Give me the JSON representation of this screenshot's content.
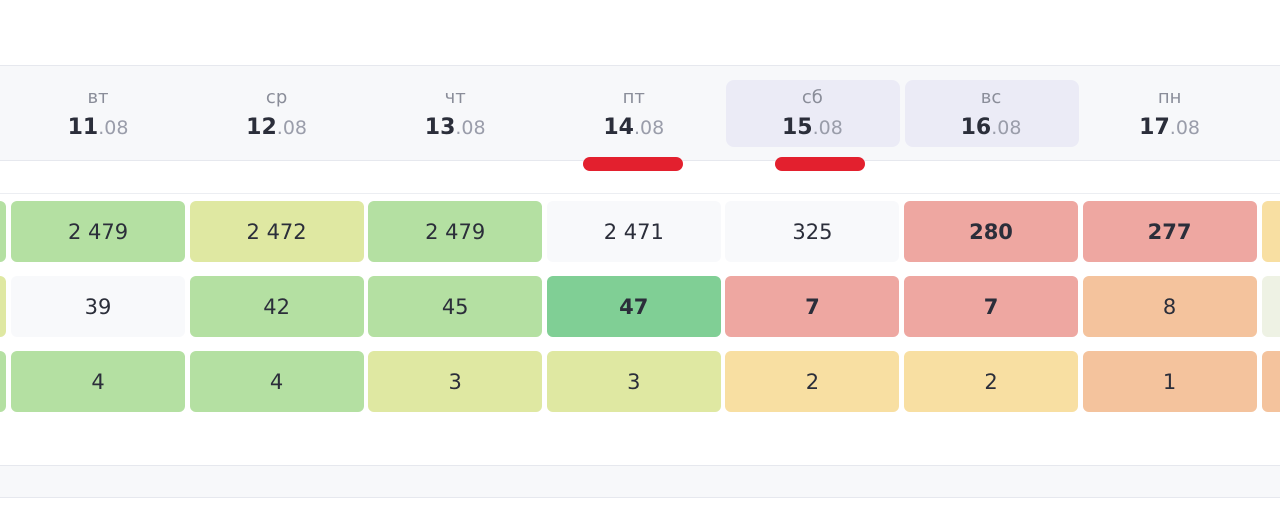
{
  "columns": [
    {
      "weekday": "вт",
      "day": "11",
      "month": ".08"
    },
    {
      "weekday": "ср",
      "day": "12",
      "month": ".08"
    },
    {
      "weekday": "чт",
      "day": "13",
      "month": ".08"
    },
    {
      "weekday": "пт",
      "day": "14",
      "month": ".08"
    },
    {
      "weekday": "сб",
      "day": "15",
      "month": ".08"
    },
    {
      "weekday": "вс",
      "day": "16",
      "month": ".08"
    },
    {
      "weekday": "пн",
      "day": "17",
      "month": ".08"
    }
  ],
  "rows": [
    [
      "2 479",
      "2 472",
      "2 479",
      "2 471",
      "325",
      "280",
      "277"
    ],
    [
      "39",
      "42",
      "45",
      "47",
      "7",
      "7",
      "8"
    ],
    [
      "4",
      "4",
      "3",
      "3",
      "2",
      "2",
      "1"
    ]
  ]
}
